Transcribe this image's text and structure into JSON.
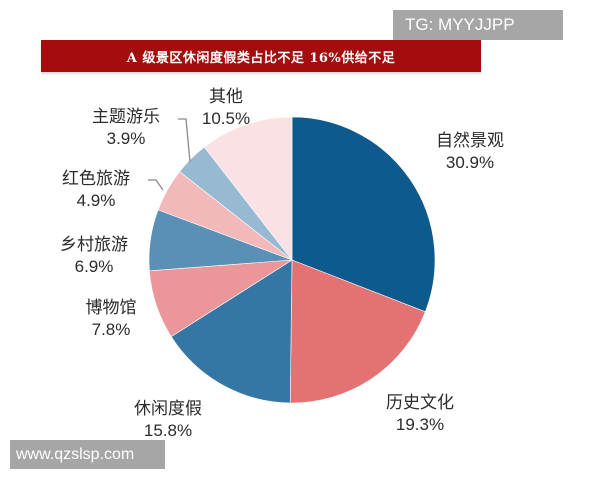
{
  "watermark_top": "TG: MYYJJPP",
  "watermark_bottom": "www.qzslsp.com",
  "chart_data": {
    "type": "pie",
    "title": "A 级景区休闲度假类占比不足 16%供给不足",
    "start_angle_deg": 0,
    "direction": "clockwise",
    "unit": "%",
    "categories": [
      "自然景观",
      "历史文化",
      "休闲度假",
      "博物馆",
      "乡村旅游",
      "红色旅游",
      "主题游乐",
      "其他"
    ],
    "values": [
      30.9,
      19.3,
      15.8,
      7.8,
      6.9,
      4.9,
      3.9,
      10.5
    ],
    "labels": [
      "30.9%",
      "19.3%",
      "15.8%",
      "7.8%",
      "6.9%",
      "4.9%",
      "3.9%",
      "10.5%"
    ],
    "colors": [
      "#0f5a8c",
      "#e57272",
      "#3577a4",
      "#eb9799",
      "#5a90b5",
      "#f1b9ba",
      "#97b9d1",
      "#f9e1e4"
    ],
    "legend": "none (direct labels)"
  }
}
